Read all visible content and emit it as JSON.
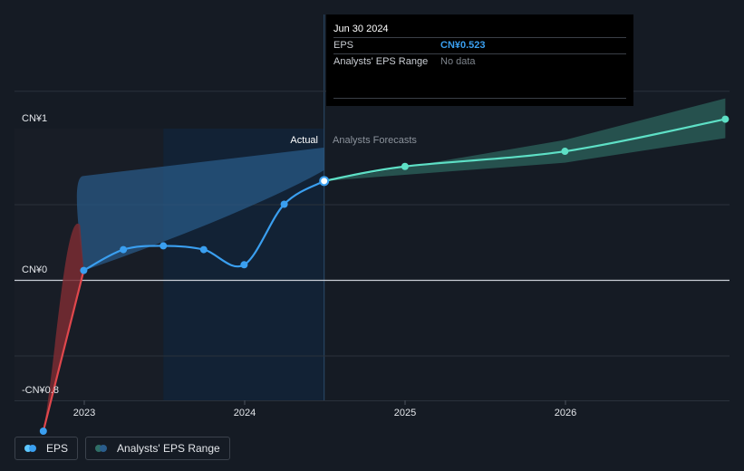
{
  "chart_data": {
    "type": "line",
    "x_ticks": [
      "2023",
      "2024",
      "2025",
      "2026"
    ],
    "y_ticks": [
      "CN¥1",
      "CN¥0",
      "-CN¥0.8"
    ],
    "ylim": [
      -0.8,
      1.0
    ],
    "section_labels": {
      "actual": "Actual",
      "forecast": "Analysts Forecasts"
    },
    "series": [
      {
        "name": "EPS",
        "color": "#3a9ff0",
        "negative_color": "#e0474c",
        "points": [
          {
            "x": "2022-09-30",
            "y": -0.8
          },
          {
            "x": "2022-12-31",
            "y": 0.05
          },
          {
            "x": "2023-03-31",
            "y": 0.16
          },
          {
            "x": "2023-06-30",
            "y": 0.18
          },
          {
            "x": "2023-09-30",
            "y": 0.16
          },
          {
            "x": "2023-12-31",
            "y": 0.08
          },
          {
            "x": "2024-03-31",
            "y": 0.4
          },
          {
            "x": "2024-06-30",
            "y": 0.523
          }
        ]
      },
      {
        "name": "EPS Forecast",
        "color": "#5ee0c6",
        "points": [
          {
            "x": "2024-06-30",
            "y": 0.523
          },
          {
            "x": "2024-12-31",
            "y": 0.6
          },
          {
            "x": "2025-12-31",
            "y": 0.68
          },
          {
            "x": "2026-12-31",
            "y": 0.85
          }
        ]
      }
    ],
    "actual_range_band": {
      "name": "Analysts' EPS Range",
      "color": "#2a5d8c",
      "upper": [
        {
          "x": "2022-12-31",
          "y": 0.55
        },
        {
          "x": "2024-06-30",
          "y": 0.7
        }
      ],
      "lower": [
        {
          "x": "2022-12-31",
          "y": 0.05
        },
        {
          "x": "2024-06-30",
          "y": 0.58
        }
      ]
    },
    "forecast_range_band": {
      "color": "#2f6e66",
      "upper": [
        {
          "x": "2024-06-30",
          "y": 0.523
        },
        {
          "x": "2025-12-31",
          "y": 0.74
        },
        {
          "x": "2026-12-31",
          "y": 0.96
        }
      ],
      "lower": [
        {
          "x": "2024-06-30",
          "y": 0.523
        },
        {
          "x": "2025-12-31",
          "y": 0.62
        },
        {
          "x": "2026-12-31",
          "y": 0.75
        }
      ]
    },
    "grid": true,
    "legend_position": "bottom-left"
  },
  "tooltip": {
    "date": "Jun 30 2024",
    "rows": [
      {
        "label": "EPS",
        "value": "CN¥0.523"
      },
      {
        "label": "Analysts' EPS Range",
        "value": "No data"
      }
    ]
  },
  "legend": {
    "items": [
      {
        "label": "EPS",
        "color_a": "#5ec8ff",
        "color_b": "#3a9ff0"
      },
      {
        "label": "Analysts' EPS Range",
        "color_a": "#2f6e66",
        "color_b": "#2a5d8c"
      }
    ]
  }
}
